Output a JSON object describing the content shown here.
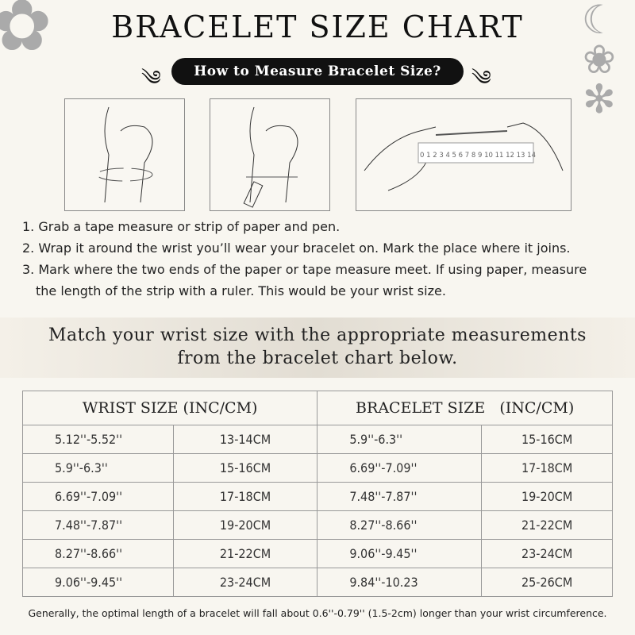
{
  "title": "BRACELET SIZE CHART",
  "subtitle": "How to Measure Bracelet Size?",
  "ruler_numbers": "0 1 2 3 4 5 6 7 8 9 10 11 12 13 14",
  "steps": [
    "1. Grab a tape measure or strip of paper and pen.",
    "2. Wrap it around the wrist you’ll wear your bracelet on. Mark the place where it joins.",
    "3. Mark where the two ends of the paper or tape measure meet. If using paper, measure",
    "the length of the strip with a ruler. This would be your wrist size."
  ],
  "banner": [
    "Match your wrist size with the appropriate measurements",
    "from the bracelet chart below."
  ],
  "table": {
    "headers": [
      "WRIST SIZE (INC/CM)",
      "BRACELET SIZE   (INC/CM)"
    ],
    "rows": [
      [
        "5.12''-5.52''",
        "13-14CM",
        "5.9''-6.3''",
        "15-16CM"
      ],
      [
        "5.9''-6.3''",
        "15-16CM",
        "6.69''-7.09''",
        "17-18CM"
      ],
      [
        "6.69''-7.09''",
        "17-18CM",
        "7.48''-7.87''",
        "19-20CM"
      ],
      [
        "7.48''-7.87''",
        "19-20CM",
        "8.27''-8.66''",
        "21-22CM"
      ],
      [
        "8.27''-8.66''",
        "21-22CM",
        "9.06''-9.45''",
        "23-24CM"
      ],
      [
        "9.06''-9.45''",
        "23-24CM",
        "9.84''-10.23",
        "25-26CM"
      ]
    ]
  },
  "note": "Generally, the optimal length of a bracelet will fall about 0.6''-0.79'' (1.5-2cm) longer than your wrist circumference."
}
